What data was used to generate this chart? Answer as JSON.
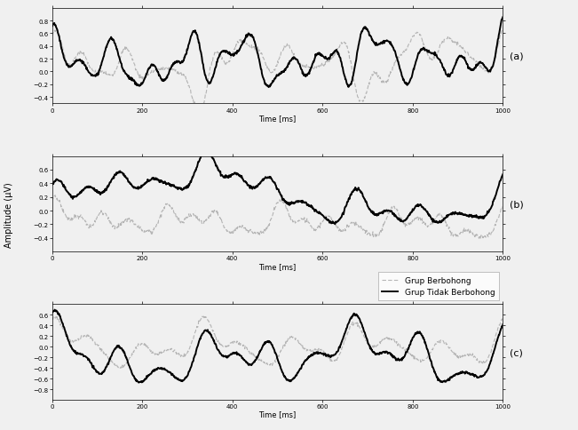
{
  "xlim": [
    0,
    1000
  ],
  "ylim_a": [
    -0.5,
    1.0
  ],
  "ylim_b": [
    -0.6,
    0.8
  ],
  "ylim_c": [
    -1.0,
    0.8
  ],
  "yticks_a": [
    -0.4,
    -0.2,
    0.0,
    0.2,
    0.4,
    0.6,
    0.8
  ],
  "yticks_b": [
    -0.4,
    -0.2,
    0.0,
    0.2,
    0.4,
    0.6
  ],
  "yticks_c": [
    -0.8,
    -0.6,
    -0.4,
    -0.2,
    0.0,
    0.2,
    0.4,
    0.6
  ],
  "xticks": [
    0,
    200,
    400,
    600,
    800,
    1000
  ],
  "xlabel": "Time [ms]",
  "ylabel": "Amplitude (µV)",
  "legend_label_dashed": "Grup Berbohong",
  "legend_label_solid": "Grup Tidak Berbohong",
  "panel_labels": [
    "(a)",
    "(b)",
    "(c)"
  ],
  "color_dashed": "#aaaaaa",
  "color_solid": "#000000",
  "background": "#f0f0f0",
  "tick_fontsize": 5,
  "label_fontsize": 6,
  "legend_fontsize": 6.5,
  "panel_label_fontsize": 8
}
